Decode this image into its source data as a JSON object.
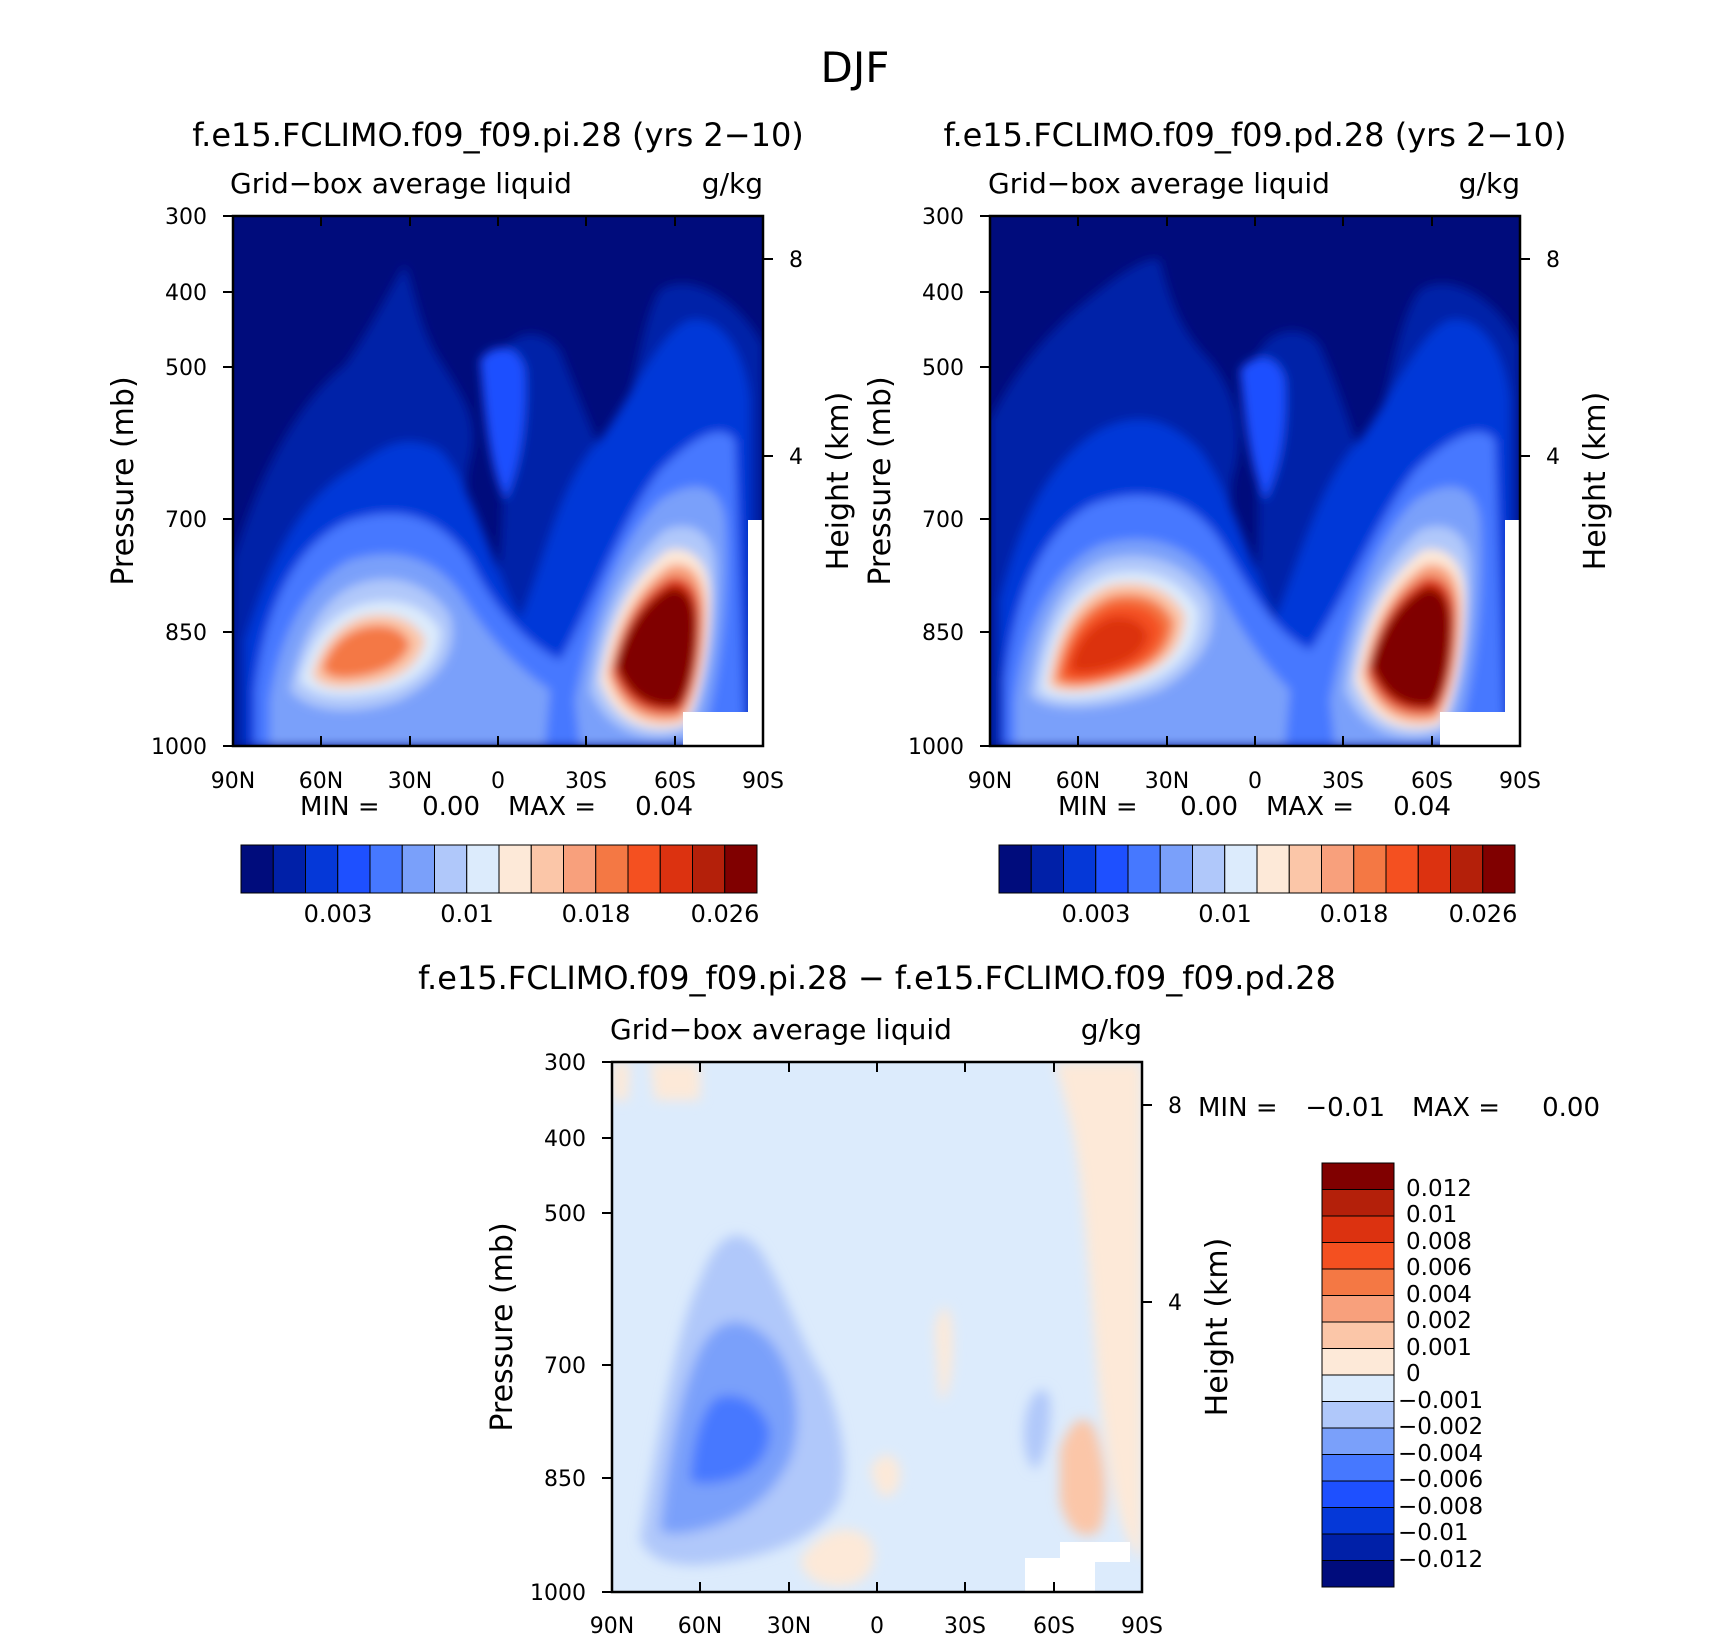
{
  "figure_title": "DJF",
  "tick_labels": {
    "x": [
      "90N",
      "60N",
      "30N",
      "0",
      "30S",
      "60S",
      "90S"
    ],
    "pressure": [
      "300",
      "400",
      "500",
      "700",
      "850",
      "1000"
    ],
    "height": [
      "8",
      "4"
    ]
  },
  "chart_data": [
    {
      "type": "contour",
      "title": "f.e15.FCLIMO.f09_f09.pi.28 (yrs 2-10)",
      "field_label": "Grid-box average liquid",
      "units": "g/kg",
      "xlabel": "",
      "ylabel": "Pressure (mb)",
      "ylabel_right": "Height (km)",
      "x_ticks": [
        "90N",
        "60N",
        "30N",
        "0",
        "30S",
        "60S",
        "90S"
      ],
      "y_ticks": [
        300,
        400,
        500,
        700,
        850,
        1000
      ],
      "right_ticks": [
        8,
        4
      ],
      "ylim": [
        1000,
        300
      ],
      "stats": {
        "min_label": "MIN =",
        "min": "0.00",
        "max_label": "MAX =",
        "max": "0.04"
      },
      "colorbar_labels": [
        "0.003",
        "0.01",
        "0.018",
        "0.026"
      ],
      "colorbar_colors": [
        "#000c7c",
        "#0020a8",
        "#0538d8",
        "#1e50ff",
        "#4678ff",
        "#7aa0fa",
        "#b0c8fa",
        "#dcebfc",
        "#fde9d8",
        "#fbc6a8",
        "#f8a07c",
        "#f47844",
        "#f45020",
        "#dc3210",
        "#b4200a",
        "#800000"
      ],
      "features": [
        {
          "name": "nh-midlat-max",
          "lat": 47,
          "p": 850,
          "value": 0.02
        },
        {
          "name": "sh-midlat-max",
          "lat": -55,
          "p": 880,
          "value": 0.04
        }
      ]
    },
    {
      "type": "contour",
      "title": "f.e15.FCLIMO.f09_f09.pd.28 (yrs 2-10)",
      "field_label": "Grid-box average liquid",
      "units": "g/kg",
      "xlabel": "",
      "ylabel": "Pressure (mb)",
      "ylabel_right": "Height (km)",
      "x_ticks": [
        "90N",
        "60N",
        "30N",
        "0",
        "30S",
        "60S",
        "90S"
      ],
      "y_ticks": [
        300,
        400,
        500,
        700,
        850,
        1000
      ],
      "right_ticks": [
        8,
        4
      ],
      "ylim": [
        1000,
        300
      ],
      "stats": {
        "min_label": "MIN =",
        "min": "0.00",
        "max_label": "MAX =",
        "max": "0.04"
      },
      "colorbar_labels": [
        "0.003",
        "0.01",
        "0.018",
        "0.026"
      ],
      "colorbar_colors": [
        "#000c7c",
        "#0020a8",
        "#0538d8",
        "#1e50ff",
        "#4678ff",
        "#7aa0fa",
        "#b0c8fa",
        "#dcebfc",
        "#fde9d8",
        "#fbc6a8",
        "#f8a07c",
        "#f47844",
        "#f45020",
        "#dc3210",
        "#b4200a",
        "#800000"
      ],
      "features": [
        {
          "name": "nh-midlat-max",
          "lat": 47,
          "p": 840,
          "value": 0.026
        },
        {
          "name": "sh-midlat-max",
          "lat": -55,
          "p": 880,
          "value": 0.04
        }
      ]
    },
    {
      "type": "contour",
      "title": "f.e15.FCLIMO.f09_f09.pi.28 - f.e15.FCLIMO.f09_f09.pd.28",
      "field_label": "Grid-box average liquid",
      "units": "g/kg",
      "xlabel": "",
      "ylabel": "Pressure (mb)",
      "ylabel_right": "Height (km)",
      "x_ticks": [
        "90N",
        "60N",
        "30N",
        "0",
        "30S",
        "60S",
        "90S"
      ],
      "y_ticks": [
        300,
        400,
        500,
        700,
        850,
        1000
      ],
      "right_ticks": [
        8,
        4
      ],
      "ylim": [
        1000,
        300
      ],
      "stats": {
        "min_label": "MIN =",
        "min": "-0.01",
        "max_label": "MAX =",
        "max": "0.00"
      },
      "colorbar_labels": [
        "0.012",
        "0.01",
        "0.008",
        "0.006",
        "0.004",
        "0.002",
        "0.001",
        "0",
        "-0.001",
        "-0.002",
        "-0.004",
        "-0.006",
        "-0.008",
        "-0.01",
        "-0.012"
      ],
      "colorbar_colors": [
        "#800000",
        "#b4200a",
        "#dc3210",
        "#f45020",
        "#f47844",
        "#f8a07c",
        "#fbc6a8",
        "#fde9d8",
        "#dcebfc",
        "#b0c8fa",
        "#7aa0fa",
        "#4678ff",
        "#1e50ff",
        "#0538d8",
        "#0020a8",
        "#000c7c"
      ],
      "features": [
        {
          "name": "nh-midlat-min",
          "lat": 45,
          "p": 780,
          "value": -0.006
        }
      ]
    }
  ]
}
